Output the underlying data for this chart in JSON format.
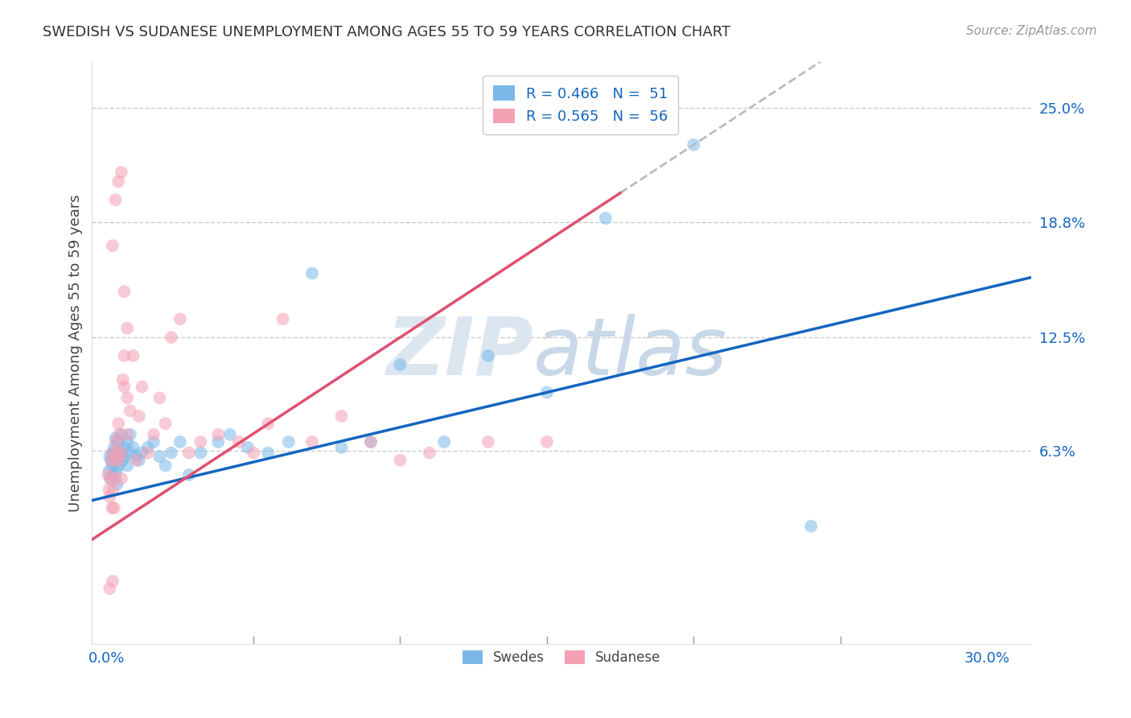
{
  "title": "SWEDISH VS SUDANESE UNEMPLOYMENT AMONG AGES 55 TO 59 YEARS CORRELATION CHART",
  "source": "Source: ZipAtlas.com",
  "ylabel": "Unemployment Among Ages 55 to 59 years",
  "ytick_labels": [
    "25.0%",
    "18.8%",
    "12.5%",
    "6.3%"
  ],
  "ytick_values": [
    0.25,
    0.188,
    0.125,
    0.063
  ],
  "xlim": [
    -0.005,
    0.315
  ],
  "ylim": [
    -0.042,
    0.275
  ],
  "blue_color": "#7ab8e8",
  "pink_color": "#f4a0b5",
  "blue_line_color": "#1565c0",
  "pink_line_color": "#e05070",
  "dashed_line_color": "#bbbbbb",
  "watermark_color": "#e8edf2",
  "background_color": "#ffffff",
  "grid_color": "#cccccc",
  "title_color": "#333333",
  "source_color": "#999999",
  "tick_color": "#1565c0",
  "legend_R_blue": "R = 0.466",
  "legend_N_blue": "N =  51",
  "legend_R_pink": "R = 0.565",
  "legend_N_pink": "N =  56",
  "swedes_x": [
    0.0008,
    0.001,
    0.0012,
    0.0015,
    0.002,
    0.002,
    0.0022,
    0.0025,
    0.003,
    0.003,
    0.0032,
    0.0035,
    0.004,
    0.004,
    0.0042,
    0.005,
    0.005,
    0.0055,
    0.006,
    0.006,
    0.007,
    0.007,
    0.008,
    0.008,
    0.009,
    0.01,
    0.011,
    0.012,
    0.014,
    0.016,
    0.018,
    0.02,
    0.022,
    0.025,
    0.028,
    0.032,
    0.038,
    0.042,
    0.048,
    0.055,
    0.062,
    0.07,
    0.08,
    0.09,
    0.1,
    0.115,
    0.13,
    0.15,
    0.17,
    0.2,
    0.24
  ],
  "swedes_y": [
    0.052,
    0.06,
    0.048,
    0.058,
    0.055,
    0.062,
    0.05,
    0.065,
    0.058,
    0.07,
    0.052,
    0.045,
    0.06,
    0.068,
    0.055,
    0.062,
    0.072,
    0.058,
    0.065,
    0.06,
    0.068,
    0.055,
    0.062,
    0.072,
    0.065,
    0.06,
    0.058,
    0.062,
    0.065,
    0.068,
    0.06,
    0.055,
    0.062,
    0.068,
    0.05,
    0.062,
    0.068,
    0.072,
    0.065,
    0.062,
    0.068,
    0.16,
    0.065,
    0.068,
    0.11,
    0.068,
    0.115,
    0.095,
    0.19,
    0.23,
    0.022
  ],
  "sudanese_x": [
    0.0005,
    0.0008,
    0.001,
    0.001,
    0.0012,
    0.0015,
    0.0018,
    0.002,
    0.002,
    0.0022,
    0.0025,
    0.003,
    0.003,
    0.0032,
    0.0035,
    0.004,
    0.004,
    0.0042,
    0.005,
    0.005,
    0.0055,
    0.006,
    0.006,
    0.007,
    0.007,
    0.008,
    0.009,
    0.01,
    0.011,
    0.012,
    0.014,
    0.016,
    0.018,
    0.02,
    0.022,
    0.025,
    0.028,
    0.032,
    0.038,
    0.045,
    0.05,
    0.055,
    0.06,
    0.07,
    0.08,
    0.09,
    0.1,
    0.11,
    0.13,
    0.15,
    0.002,
    0.003,
    0.004,
    0.005,
    0.006,
    0.007
  ],
  "sudanese_y": [
    0.05,
    0.042,
    -0.012,
    0.038,
    0.048,
    0.058,
    0.032,
    -0.008,
    0.062,
    0.042,
    0.032,
    0.058,
    0.048,
    0.068,
    0.062,
    0.078,
    0.058,
    0.072,
    0.062,
    0.048,
    0.102,
    0.098,
    0.115,
    0.072,
    0.092,
    0.085,
    0.115,
    0.058,
    0.082,
    0.098,
    0.062,
    0.072,
    0.092,
    0.078,
    0.125,
    0.135,
    0.062,
    0.068,
    0.072,
    0.068,
    0.062,
    0.078,
    0.135,
    0.068,
    0.082,
    0.068,
    0.058,
    0.062,
    0.068,
    0.068,
    0.175,
    0.2,
    0.21,
    0.215,
    0.15,
    0.13
  ],
  "pink_line_x_end": 0.175,
  "blue_line_slope": 0.38,
  "blue_line_intercept": 0.038,
  "pink_line_slope": 1.05,
  "pink_line_intercept": 0.02
}
